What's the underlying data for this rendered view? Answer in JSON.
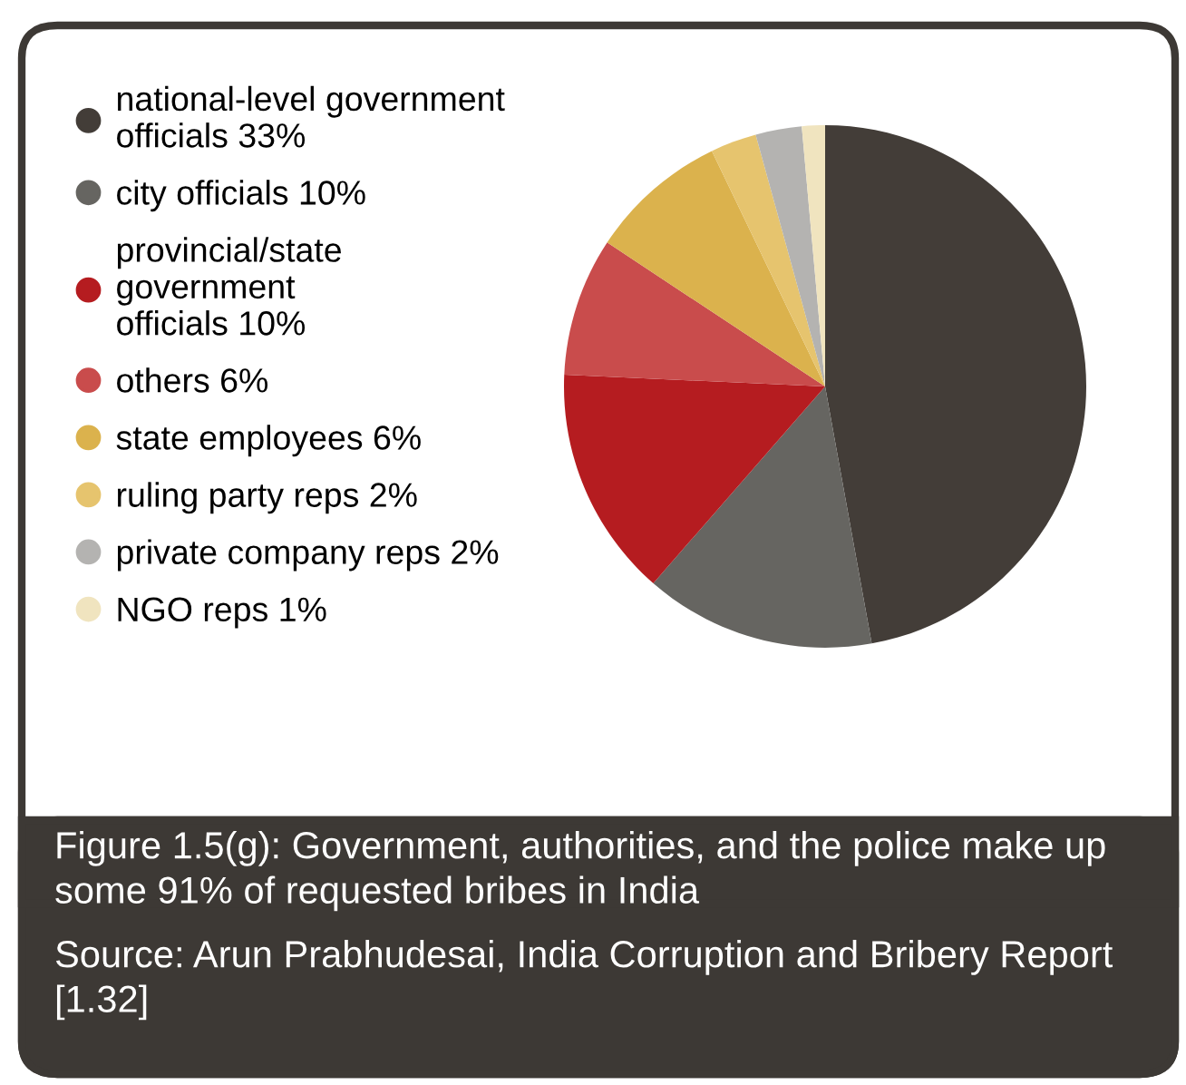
{
  "chart_data": {
    "type": "pie",
    "categories": [
      "national-level government\nofficials 33%",
      "city officials 10%",
      "provincial/state\ngovernment\nofficials 10%",
      "others 6%",
      "state employees 6%",
      "ruling party reps 2%",
      "private company reps 2%",
      "NGO reps 1%"
    ],
    "values": [
      33,
      10,
      10,
      6,
      6,
      2,
      2,
      1
    ],
    "colors": [
      "#433d38",
      "#666561",
      "#b51c20",
      "#c94c4c",
      "#dbb24d",
      "#e6c46e",
      "#b4b3b1",
      "#f0e4bf"
    ],
    "legend": "left",
    "annotations": [
      "Figure 1.5(g): Government, authorities, and the police make up some 91% of requested bribes in India",
      "Source: Arun Prabhudesai, India Corruption and Bribery Report [1.32]"
    ]
  }
}
